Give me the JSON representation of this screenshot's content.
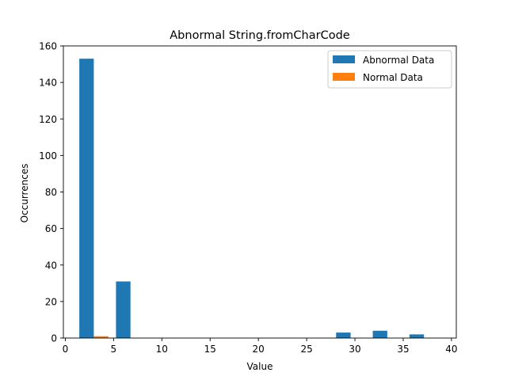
{
  "chart_data": {
    "type": "bar",
    "title": "Abnormal String.fromCharCode",
    "xlabel": "Value",
    "ylabel": "Occurrences",
    "xlim": [
      -0.2,
      40.5
    ],
    "ylim": [
      0,
      160
    ],
    "xticks": [
      0,
      5,
      10,
      15,
      20,
      25,
      30,
      35,
      40
    ],
    "yticks": [
      0,
      20,
      40,
      60,
      80,
      100,
      120,
      140,
      160
    ],
    "grid": false,
    "legend_position": "top-right",
    "series": [
      {
        "name": "Abnormal Data",
        "color": "#1f77b4",
        "bars": [
          {
            "x0": 1.45,
            "x1": 2.95,
            "value": 153
          },
          {
            "x0": 5.25,
            "x1": 6.75,
            "value": 31
          },
          {
            "x0": 28.05,
            "x1": 29.55,
            "value": 3
          },
          {
            "x0": 31.85,
            "x1": 33.35,
            "value": 4
          },
          {
            "x0": 35.65,
            "x1": 37.15,
            "value": 2
          }
        ]
      },
      {
        "name": "Normal Data",
        "color": "#ff7f0e",
        "bars": [
          {
            "x0": 2.95,
            "x1": 4.45,
            "value": 1
          }
        ]
      }
    ]
  }
}
